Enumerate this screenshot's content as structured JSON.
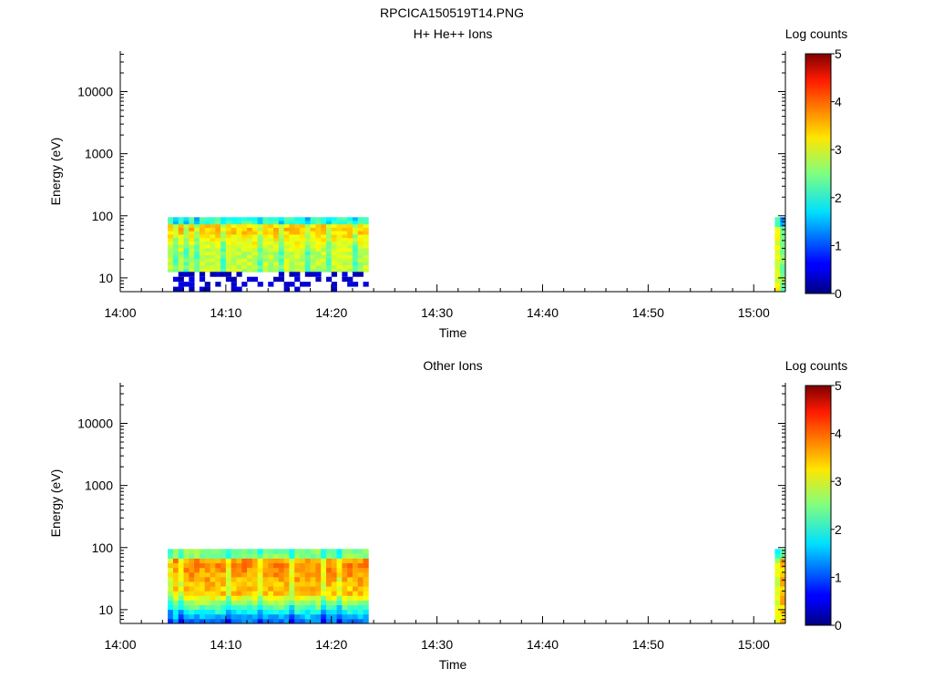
{
  "figure_title": "RPCICA150519T14.PNG",
  "chart_data": [
    {
      "type": "heatmap",
      "title": "H+ He++ Ions",
      "xlabel": "Time",
      "ylabel": "Energy (eV)",
      "y_scale": "log",
      "ylim": [
        6,
        45000
      ],
      "xlim": [
        "14:00",
        "15:03"
      ],
      "x_ticks": [
        "14:00",
        "14:10",
        "14:20",
        "14:30",
        "14:40",
        "14:50",
        "15:00"
      ],
      "y_ticks": [
        "10",
        "100",
        "1000",
        "10000"
      ],
      "colorbar": {
        "label": "Log counts",
        "range": [
          0,
          5
        ],
        "ticks": [
          "0",
          "1",
          "2",
          "3",
          "4",
          "5"
        ],
        "colormap": "jet"
      },
      "segments": [
        {
          "start": "14:04:30",
          "end": "14:23:30",
          "energy_range": [
            12.5,
            95
          ],
          "dominant_log_counts": 2.8,
          "peak_log_counts": 3.4,
          "peak_energy": 60,
          "low_energy_sparse": {
            "energy_range": [
              6,
              12.5
            ],
            "log_counts": 0.2
          }
        },
        {
          "start": "15:02:00",
          "end": "15:03:00",
          "energy_range": [
            6,
            95
          ],
          "dominant_log_counts": 3.0
        }
      ]
    },
    {
      "type": "heatmap",
      "title": "Other Ions",
      "xlabel": "Time",
      "ylabel": "Energy (eV)",
      "y_scale": "log",
      "ylim": [
        6,
        45000
      ],
      "xlim": [
        "14:00",
        "15:03"
      ],
      "x_ticks": [
        "14:00",
        "14:10",
        "14:20",
        "14:30",
        "14:40",
        "14:50",
        "15:00"
      ],
      "y_ticks": [
        "10",
        "100",
        "1000",
        "10000"
      ],
      "colorbar": {
        "label": "Log counts",
        "range": [
          0,
          5
        ],
        "ticks": [
          "0",
          "1",
          "2",
          "3",
          "4",
          "5"
        ],
        "colormap": "jet"
      },
      "segments": [
        {
          "start": "14:04:30",
          "end": "14:23:30",
          "energy_range": [
            6,
            95
          ],
          "dominant_log_counts": 3.4,
          "peak_log_counts": 3.7,
          "peak_energy": 50,
          "low_energy_log_counts": 1.2
        },
        {
          "start": "15:02:00",
          "end": "15:03:00",
          "energy_range": [
            6,
            95
          ],
          "dominant_log_counts": 3.4
        }
      ]
    }
  ]
}
